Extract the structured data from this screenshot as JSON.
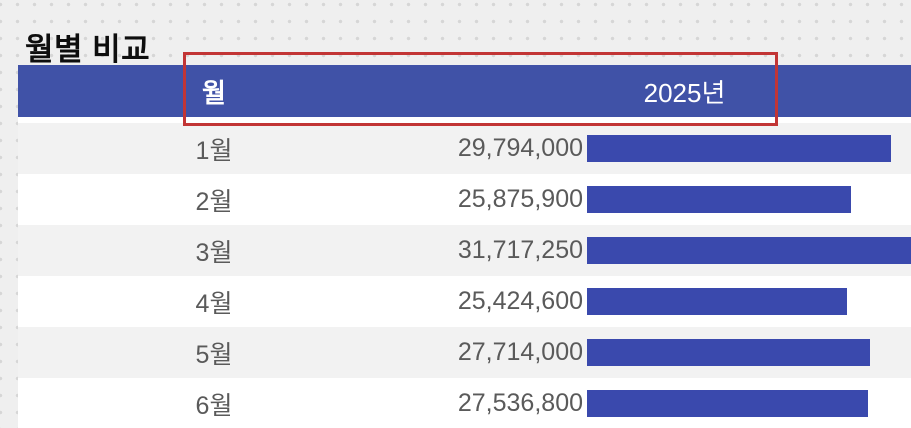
{
  "page": {
    "title": "월별 비교"
  },
  "table": {
    "header": {
      "month": "월",
      "year": "2025년"
    },
    "rows": [
      {
        "month": "1월",
        "value": "29,794,000"
      },
      {
        "month": "2월",
        "value": "25,875,900"
      },
      {
        "month": "3월",
        "value": "31,717,250"
      },
      {
        "month": "4월",
        "value": "25,424,600"
      },
      {
        "month": "5월",
        "value": "27,714,000"
      },
      {
        "month": "6월",
        "value": "27,536,800"
      }
    ]
  },
  "chart_data": {
    "type": "bar",
    "orientation": "horizontal",
    "title": "월별 비교",
    "categories": [
      "1월",
      "2월",
      "3월",
      "4월",
      "5월",
      "6월"
    ],
    "series": [
      {
        "name": "2025년",
        "values": [
          29794000,
          25875900,
          31717250,
          25424600,
          27714000,
          27536800
        ]
      }
    ],
    "value_labels": [
      "29,794,000",
      "25,875,900",
      "31,717,250",
      "25,424,600",
      "27,714,000",
      "27,536,800"
    ],
    "xlim": [
      0,
      31717250
    ],
    "grid": false,
    "legend_position": "column-header"
  },
  "annotation": {
    "type": "highlight-box",
    "around": "header-row",
    "color": "#c23535"
  },
  "colors": {
    "background": "#efefef",
    "header_bg": "#4052a7",
    "bar": "#3a49ad",
    "row_alt": "#f2f2f2",
    "text": "#5a5a5a",
    "annotation": "#c23535"
  }
}
